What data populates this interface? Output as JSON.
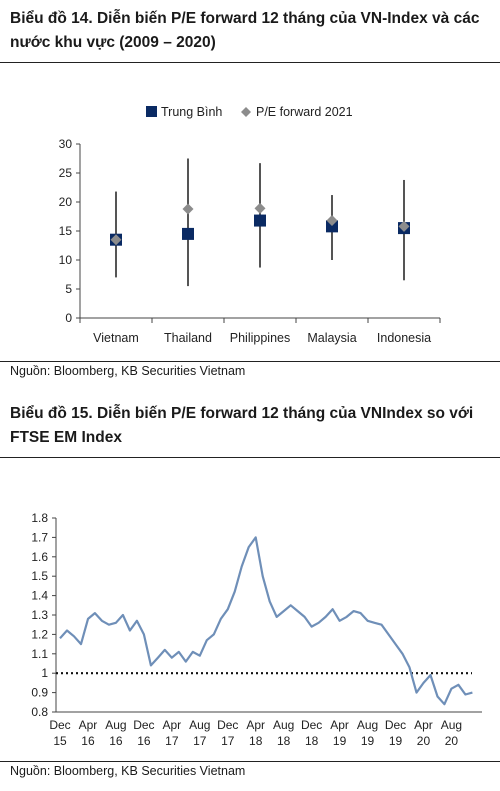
{
  "chart1": {
    "title": "Biểu đồ 14. Diễn biến P/E forward 12 tháng của VN-Index và các nước khu vực (2009 – 2020)",
    "source": "Nguồn: Bloomberg, KB Securities Vietnam"
  },
  "chart2": {
    "title": "Biểu đồ 15. Diễn biến P/E forward 12 tháng của VNIndex so với FTSE EM Index",
    "source": "Nguồn: Bloomberg, KB Securities Vietnam"
  },
  "chart_data": [
    {
      "type": "scatter",
      "title": "Biểu đồ 14. Diễn biến P/E forward 12 tháng của VN-Index và các nước khu vực (2009 – 2020)",
      "categories": [
        "Vietnam",
        "Thailand",
        "Philippines",
        "Malaysia",
        "Indonesia"
      ],
      "ranges": [
        [
          7,
          21.8
        ],
        [
          5.5,
          27.5
        ],
        [
          8.7,
          26.7
        ],
        [
          10,
          21.2
        ],
        [
          6.5,
          23.8
        ]
      ],
      "series": [
        {
          "name": "Trung Bình",
          "values": [
            13.5,
            14.5,
            16.8,
            15.8,
            15.5
          ],
          "color": "#0a2a63",
          "marker": "square"
        },
        {
          "name": "P/E forward 2021",
          "values": [
            13.5,
            18.8,
            18.9,
            16.8,
            15.8
          ],
          "color": "#8c8c8c",
          "marker": "diamond"
        }
      ],
      "ylim": [
        0,
        30
      ],
      "yticks": [
        0,
        5,
        10,
        15,
        20,
        25,
        30
      ],
      "legend": "top-center",
      "whisker_color": "#555555"
    },
    {
      "type": "line",
      "title": "Biểu đồ 15. Diễn biến P/E forward 12 tháng của VNIndex so với FTSE EM Index",
      "x": [
        "2015-12",
        "2016-01",
        "2016-02",
        "2016-03",
        "2016-04",
        "2016-05",
        "2016-06",
        "2016-07",
        "2016-08",
        "2016-09",
        "2016-10",
        "2016-11",
        "2016-12",
        "2017-01",
        "2017-02",
        "2017-03",
        "2017-04",
        "2017-05",
        "2017-06",
        "2017-07",
        "2017-08",
        "2017-09",
        "2017-10",
        "2017-11",
        "2017-12",
        "2018-01",
        "2018-02",
        "2018-03",
        "2018-04",
        "2018-05",
        "2018-06",
        "2018-07",
        "2018-08",
        "2018-09",
        "2018-10",
        "2018-11",
        "2018-12",
        "2019-01",
        "2019-02",
        "2019-03",
        "2019-04",
        "2019-05",
        "2019-06",
        "2019-07",
        "2019-08",
        "2019-09",
        "2019-10",
        "2019-11",
        "2019-12",
        "2020-01",
        "2020-02",
        "2020-03",
        "2020-04",
        "2020-05",
        "2020-06",
        "2020-07",
        "2020-08",
        "2020-09",
        "2020-10",
        "2020-11"
      ],
      "values": [
        1.18,
        1.22,
        1.19,
        1.15,
        1.28,
        1.31,
        1.27,
        1.25,
        1.26,
        1.3,
        1.22,
        1.27,
        1.2,
        1.04,
        1.08,
        1.12,
        1.08,
        1.11,
        1.06,
        1.11,
        1.09,
        1.17,
        1.2,
        1.28,
        1.33,
        1.42,
        1.55,
        1.65,
        1.7,
        1.5,
        1.37,
        1.29,
        1.32,
        1.35,
        1.32,
        1.29,
        1.24,
        1.26,
        1.29,
        1.33,
        1.27,
        1.29,
        1.32,
        1.31,
        1.27,
        1.26,
        1.25,
        1.2,
        1.15,
        1.1,
        1.03,
        0.9,
        0.95,
        0.99,
        0.88,
        0.84,
        0.92,
        0.94,
        0.89,
        0.9
      ],
      "ylim": [
        0.8,
        1.8
      ],
      "yticks": [
        0.8,
        0.9,
        1,
        1.1,
        1.2,
        1.3,
        1.4,
        1.5,
        1.6,
        1.7,
        1.8
      ],
      "reference_line": 1,
      "xtick_labels": [
        {
          "month": "Dec",
          "year": "15",
          "at": "2015-12"
        },
        {
          "month": "Apr",
          "year": "16",
          "at": "2016-04"
        },
        {
          "month": "Aug",
          "year": "16",
          "at": "2016-08"
        },
        {
          "month": "Dec",
          "year": "16",
          "at": "2016-12"
        },
        {
          "month": "Apr",
          "year": "17",
          "at": "2017-04"
        },
        {
          "month": "Aug",
          "year": "17",
          "at": "2017-08"
        },
        {
          "month": "Dec",
          "year": "17",
          "at": "2017-12"
        },
        {
          "month": "Apr",
          "year": "18",
          "at": "2018-04"
        },
        {
          "month": "Aug",
          "year": "18",
          "at": "2018-08"
        },
        {
          "month": "Dec",
          "year": "18",
          "at": "2018-12"
        },
        {
          "month": "Apr",
          "year": "19",
          "at": "2019-04"
        },
        {
          "month": "Aug",
          "year": "19",
          "at": "2019-08"
        },
        {
          "month": "Dec",
          "year": "19",
          "at": "2019-12"
        },
        {
          "month": "Apr",
          "year": "20",
          "at": "2020-04"
        },
        {
          "month": "Aug",
          "year": "20",
          "at": "2020-08"
        }
      ],
      "line_color": "#6f8fb8"
    }
  ]
}
